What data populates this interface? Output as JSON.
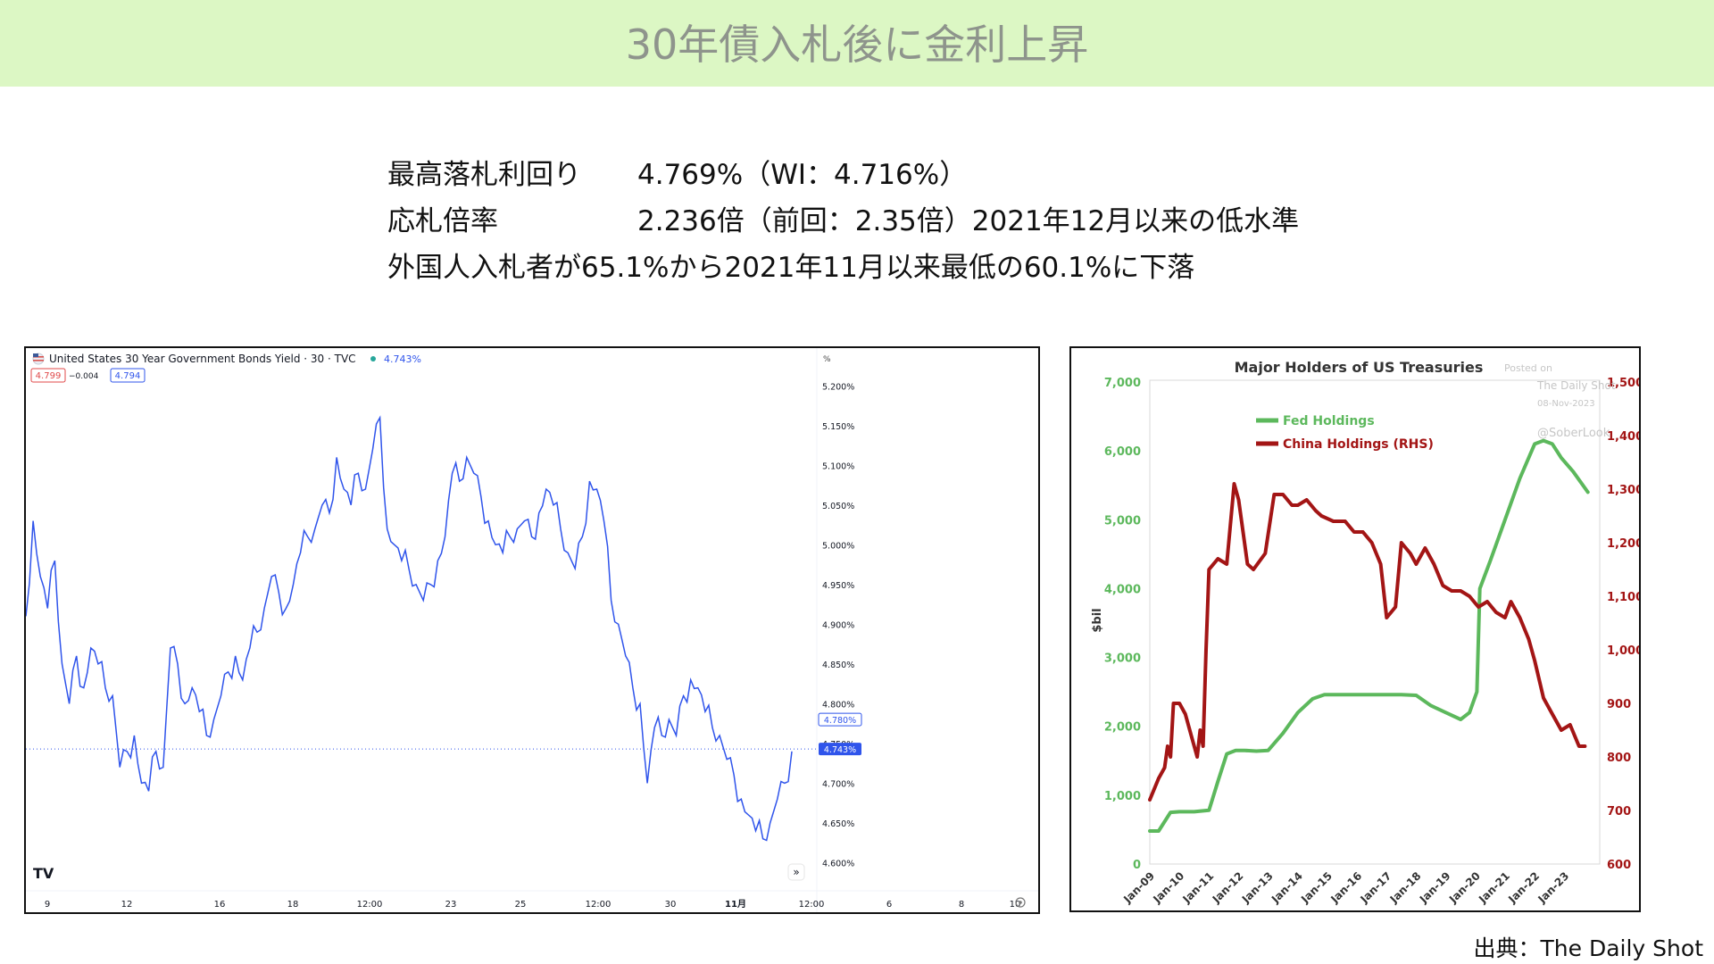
{
  "header": {
    "title": "30年債入札後に金利上昇"
  },
  "summary": {
    "rows": [
      {
        "label": "最高落札利回り",
        "value": "4.769%（WI：4.716%）"
      },
      {
        "label": "応札倍率",
        "value": "2.236倍（前回：2.35倍）2021年12月以来の低水準"
      },
      {
        "label": "",
        "value": "外国人入札者が65.1%から2021年11月以来最低の60.1%に下落"
      }
    ]
  },
  "source": "出典：The Daily Shot",
  "chart_data": [
    {
      "type": "line",
      "title": "United States 30 Year Government Bonds Yield · 30 · TVC",
      "last_value_label": "4.743%",
      "bid": "4.799",
      "change": "−0.004",
      "ask": "4.794",
      "unit_label": "%",
      "xlabel": "",
      "ylabel": "",
      "x_ticks": [
        "9",
        "12",
        "16",
        "18",
        "12:00",
        "23",
        "25",
        "12:00",
        "30",
        "11月",
        "12:00",
        "6",
        "8",
        "10"
      ],
      "y_ticks": [
        "5.200%",
        "5.150%",
        "5.100%",
        "5.050%",
        "5.000%",
        "4.950%",
        "4.900%",
        "4.850%",
        "4.800%",
        "4.750%",
        "4.700%",
        "4.650%",
        "4.600%"
      ],
      "ylim": [
        4.578,
        5.225
      ],
      "price_tags": {
        "upper": "4.780%",
        "current": "4.743%"
      },
      "current_line": 4.743,
      "grid": false,
      "legend": "none",
      "color": "#2f54eb",
      "series": [
        {
          "values": [
            4.91,
            5.03,
            4.96,
            4.92,
            4.98,
            4.85,
            4.8,
            4.86,
            4.82,
            4.87,
            4.85,
            4.82,
            4.81,
            4.72,
            4.74,
            4.76,
            4.7,
            4.69,
            4.74,
            4.72,
            4.87,
            4.85,
            4.8,
            4.82,
            4.79,
            4.76,
            4.78,
            4.81,
            4.84,
            4.86,
            4.83,
            4.87,
            4.89,
            4.92,
            4.96,
            4.94,
            4.92,
            4.95,
            4.99,
            5.01,
            5.02,
            5.05,
            5.04,
            5.11,
            5.07,
            5.05,
            5.09,
            5.07,
            5.12,
            5.16,
            5.02,
            5.0,
            4.98,
            4.97,
            4.95,
            4.93,
            4.95,
            4.98,
            5.01,
            5.09,
            5.08,
            5.11,
            5.09,
            5.06,
            5.03,
            5.0,
            4.99,
            5.01,
            5.02,
            5.03,
            5.01,
            5.04,
            5.07,
            5.05,
            5.02,
            4.99,
            4.97,
            5.01,
            5.08,
            5.07,
            5.03,
            4.93,
            4.9,
            4.86,
            4.82,
            4.8,
            4.7,
            4.77,
            4.76,
            4.78,
            4.76,
            4.81,
            4.83,
            4.82,
            4.79,
            4.77,
            4.76,
            4.73,
            4.71,
            4.68,
            4.66,
            4.64,
            4.63,
            4.65,
            4.68,
            4.7,
            4.74
          ]
        }
      ]
    },
    {
      "type": "line",
      "title": "Major Holders of US Treasuries",
      "watermark": [
        "Posted on",
        "The Daily Shot",
        "08-Nov-2023",
        "@SoberLook"
      ],
      "ylabel": "$bil",
      "xlabel": "",
      "categories": [
        "Jan-09",
        "Jan-10",
        "Jan-11",
        "Jan-12",
        "Jan-13",
        "Jan-14",
        "Jan-15",
        "Jan-16",
        "Jan-17",
        "Jan-18",
        "Jan-19",
        "Jan-20",
        "Jan-21",
        "Jan-22",
        "Jan-23"
      ],
      "y_left_ticks": [
        "0",
        "1,000",
        "2,000",
        "3,000",
        "4,000",
        "5,000",
        "6,000",
        "7,000"
      ],
      "y_right_ticks": [
        "600",
        "700",
        "800",
        "900",
        "1,000",
        "1,100",
        "1,200",
        "1,300",
        "1,400",
        "1,500"
      ],
      "ylim_left": [
        0,
        7000
      ],
      "ylim_right": [
        600,
        1500
      ],
      "xlim": [
        2009.0,
        2024.2
      ],
      "legend": "top-left",
      "grid": false,
      "series": [
        {
          "name": "Fed Holdings",
          "axis": "left",
          "color": "#5cb85c",
          "x": [
            2009.0,
            2009.3,
            2009.7,
            2010.0,
            2010.5,
            2011.0,
            2011.3,
            2011.6,
            2011.9,
            2012.2,
            2012.6,
            2013.0,
            2013.5,
            2014.0,
            2014.5,
            2014.9,
            2015.5,
            2016.5,
            2017.5,
            2018.0,
            2018.5,
            2019.0,
            2019.5,
            2019.8,
            2020.05,
            2020.15,
            2020.5,
            2021.0,
            2021.5,
            2022.0,
            2022.3,
            2022.6,
            2022.9,
            2023.3,
            2023.8
          ],
          "values": [
            480,
            480,
            750,
            760,
            760,
            780,
            1200,
            1600,
            1650,
            1650,
            1640,
            1650,
            1900,
            2200,
            2400,
            2460,
            2460,
            2460,
            2460,
            2450,
            2300,
            2200,
            2100,
            2200,
            2500,
            4000,
            4400,
            5000,
            5600,
            6100,
            6150,
            6100,
            5900,
            5700,
            5400
          ]
        },
        {
          "name": "China Holdings (RHS)",
          "axis": "right",
          "color": "#a31515",
          "x": [
            2009.0,
            2009.3,
            2009.5,
            2009.6,
            2009.7,
            2009.8,
            2010.0,
            2010.2,
            2010.4,
            2010.6,
            2010.7,
            2010.8,
            2010.9,
            2011.0,
            2011.3,
            2011.6,
            2011.85,
            2012.0,
            2012.3,
            2012.5,
            2012.9,
            2013.2,
            2013.5,
            2013.8,
            2014.0,
            2014.3,
            2014.6,
            2014.8,
            2015.2,
            2015.6,
            2015.9,
            2016.2,
            2016.5,
            2016.8,
            2017.0,
            2017.3,
            2017.5,
            2017.8,
            2018.0,
            2018.3,
            2018.6,
            2018.9,
            2019.2,
            2019.5,
            2019.8,
            2020.1,
            2020.4,
            2020.7,
            2021.0,
            2021.2,
            2021.5,
            2021.8,
            2022.0,
            2022.3,
            2022.6,
            2022.9,
            2023.2,
            2023.5,
            2023.7
          ],
          "values": [
            720,
            760,
            780,
            820,
            800,
            900,
            900,
            880,
            840,
            800,
            850,
            820,
            1000,
            1150,
            1170,
            1160,
            1310,
            1280,
            1160,
            1150,
            1180,
            1290,
            1290,
            1270,
            1270,
            1280,
            1260,
            1250,
            1240,
            1240,
            1220,
            1220,
            1200,
            1160,
            1060,
            1080,
            1200,
            1180,
            1160,
            1190,
            1160,
            1120,
            1110,
            1110,
            1100,
            1080,
            1090,
            1070,
            1060,
            1090,
            1060,
            1020,
            980,
            910,
            880,
            850,
            860,
            820,
            820
          ]
        }
      ]
    }
  ]
}
